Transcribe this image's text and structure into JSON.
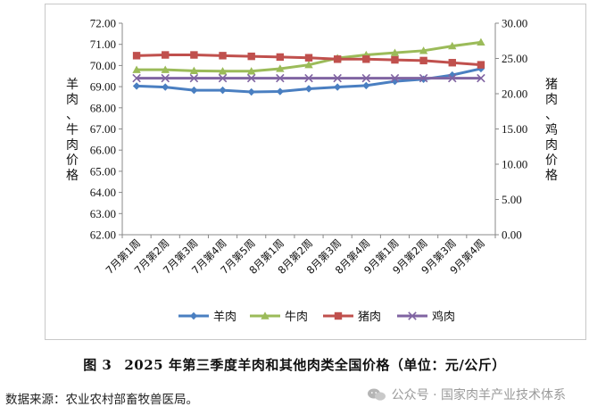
{
  "chart_data": {
    "type": "line",
    "categories": [
      "7月第1周",
      "7月第2周",
      "7月第3周",
      "7月第4周",
      "7月第5周",
      "8月第1周",
      "8月第2周",
      "8月第3周",
      "8月第4周",
      "9月第1周",
      "9月第2周",
      "9月第3周",
      "9月第4周"
    ],
    "left_axis": {
      "label": "羊肉、牛肉价格",
      "ylim": [
        62,
        72
      ],
      "ticks": [
        "62.00",
        "63.00",
        "64.00",
        "65.00",
        "66.00",
        "67.00",
        "68.00",
        "69.00",
        "70.00",
        "71.00",
        "72.00"
      ]
    },
    "right_axis": {
      "label": "猪肉、鸡肉价格",
      "ylim": [
        0,
        30
      ],
      "ticks": [
        "0.00",
        "5.00",
        "10.00",
        "15.00",
        "20.00",
        "25.00",
        "30.00"
      ]
    },
    "series": [
      {
        "name": "羊肉",
        "axis": "left",
        "color": "#4a7fc1",
        "marker": "diamond",
        "values": [
          69.03,
          68.98,
          68.83,
          68.83,
          68.75,
          68.77,
          68.9,
          68.98,
          69.05,
          69.25,
          69.35,
          69.55,
          69.85
        ]
      },
      {
        "name": "牛肉",
        "axis": "left",
        "color": "#9bbb59",
        "marker": "triangle",
        "values": [
          69.8,
          69.8,
          69.75,
          69.73,
          69.73,
          69.85,
          70.03,
          70.35,
          70.5,
          70.6,
          70.7,
          70.92,
          71.1
        ]
      },
      {
        "name": "猪肉",
        "axis": "right",
        "color": "#c0504d",
        "marker": "square",
        "values": [
          25.4,
          25.5,
          25.5,
          25.4,
          25.3,
          25.2,
          25.1,
          24.9,
          24.9,
          24.8,
          24.7,
          24.4,
          24.1
        ]
      },
      {
        "name": "鸡肉",
        "axis": "right",
        "color": "#8064a2",
        "marker": "x",
        "values": [
          22.2,
          22.2,
          22.2,
          22.2,
          22.2,
          22.2,
          22.2,
          22.2,
          22.2,
          22.2,
          22.2,
          22.2,
          22.2
        ]
      }
    ],
    "legend": [
      "羊肉",
      "牛肉",
      "猪肉",
      "鸡肉"
    ],
    "legend_position": "bottom",
    "grid": false
  },
  "caption": {
    "label": "图 3",
    "text": "2025 年第三季度羊肉和其他肉类全国价格（单位：元/公斤）"
  },
  "source_note": "数据来源：农业农村部畜牧兽医局。",
  "watermark": "公众号 · 国家肉羊产业技术体系"
}
